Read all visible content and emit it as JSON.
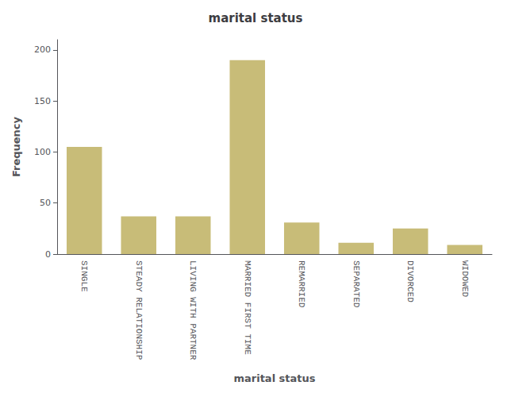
{
  "chart_data": {
    "type": "bar",
    "title": "marital status",
    "xlabel": "marital status",
    "ylabel": "Frequency",
    "categories": [
      "SINGLE",
      "STEADY RELATIONSHIP",
      "LIVING WITH PARTNER",
      "MARRIED FIRST TIME",
      "REMARRIED",
      "SEPARATED",
      "DIVORCED",
      "WIDOWED"
    ],
    "values": [
      105,
      37,
      37,
      190,
      31,
      11,
      25,
      9
    ],
    "color": "#c8bc78",
    "ylim": [
      0,
      210
    ],
    "yticks": [
      0,
      50,
      100,
      150,
      200
    ],
    "grid": false
  }
}
